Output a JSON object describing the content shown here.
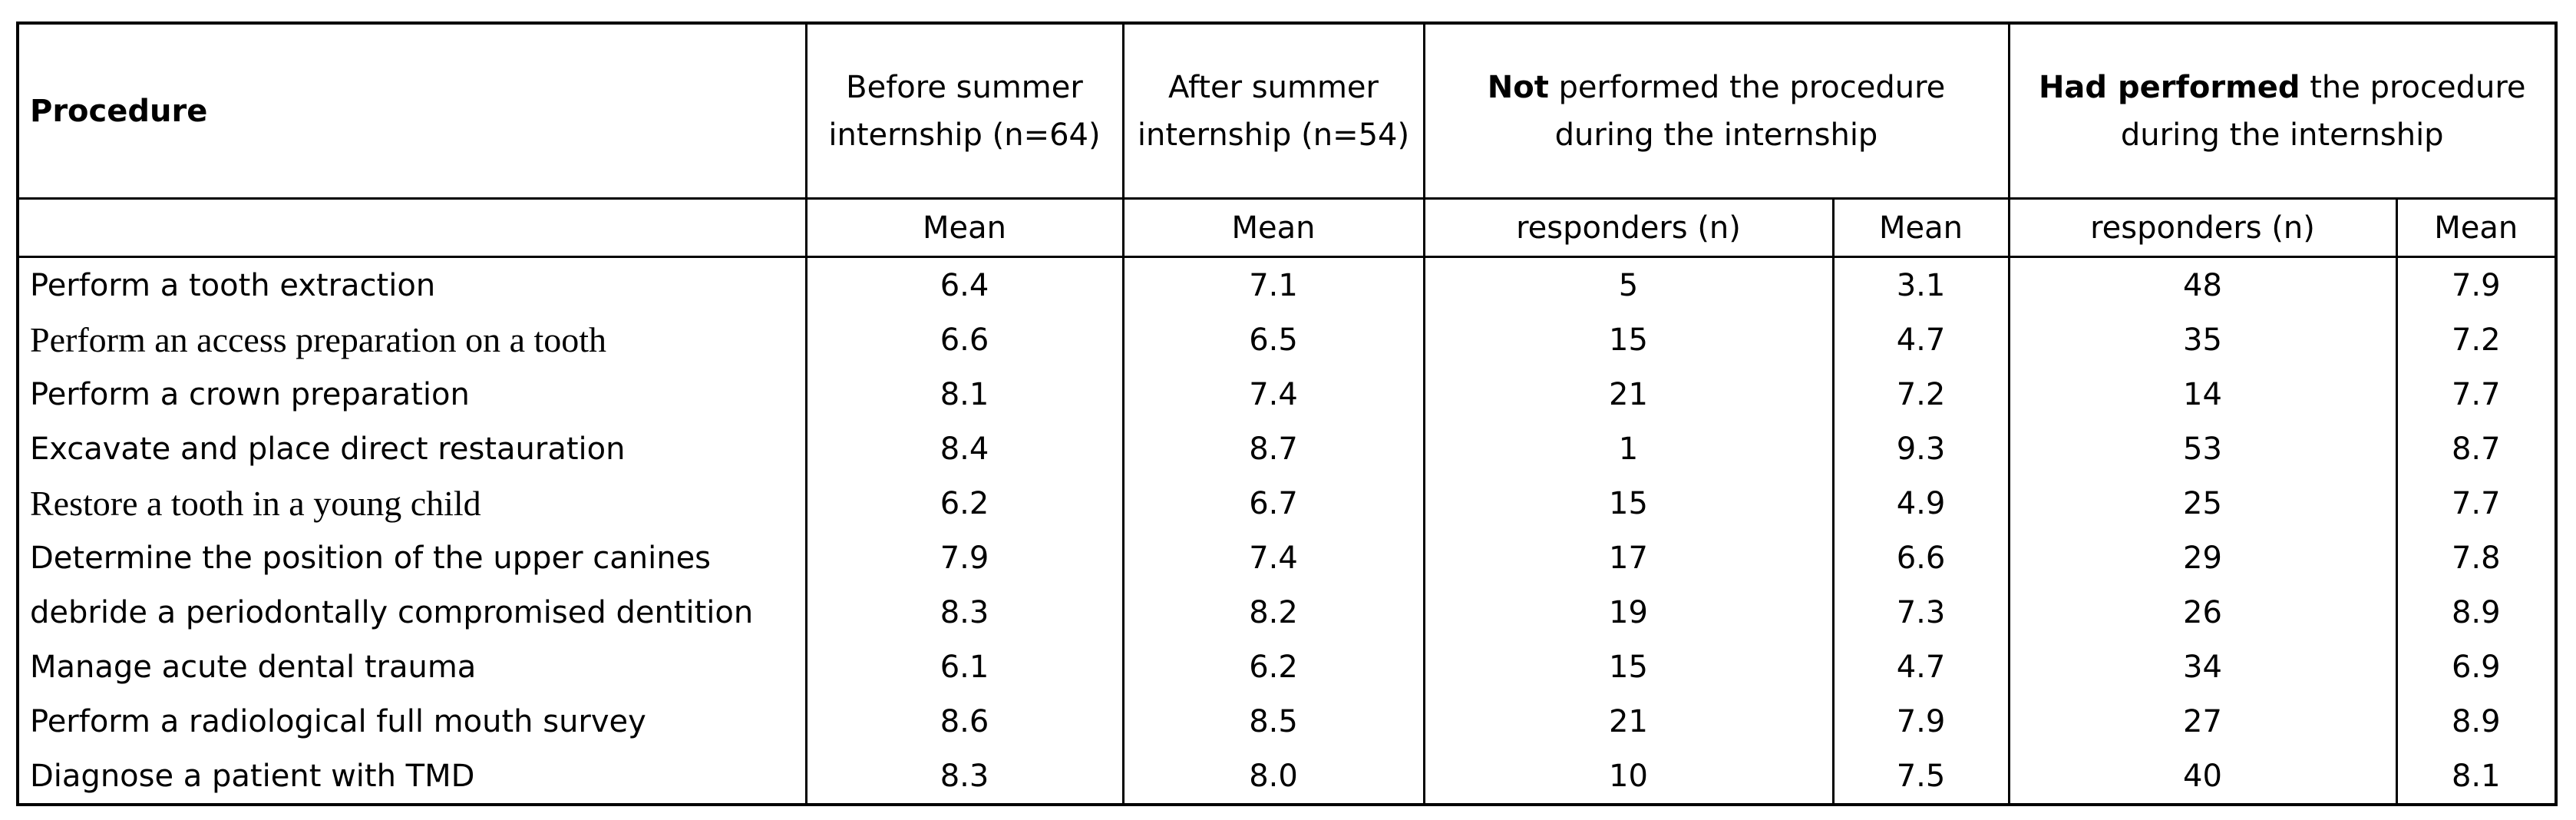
{
  "table": {
    "header": {
      "procedure": "Procedure",
      "before": "Before summer internship (n=64)",
      "after": "After summer internship (n=54)",
      "not_performed": {
        "bold": "Not",
        "rest": "performed the procedure during the internship"
      },
      "had_performed": {
        "bold": "Had performed",
        "rest": "the procedure during the internship"
      }
    },
    "subheader": [
      "Mean",
      "Mean",
      "responders (n)",
      "Mean",
      "responders (n)",
      "Mean"
    ],
    "rows": [
      [
        "Perform a tooth extraction",
        "6.4",
        "7.1",
        "5",
        "3.1",
        "48",
        "7.9"
      ],
      [
        "Perform an access preparation on a tooth",
        "6.6",
        "6.5",
        "15",
        "4.7",
        "35",
        "7.2"
      ],
      [
        "Perform a crown preparation",
        "8.1",
        "7.4",
        "21",
        "7.2",
        "14",
        "7.7"
      ],
      [
        "Excavate and place direct restauration",
        "8.4",
        "8.7",
        "1",
        "9.3",
        "53",
        "8.7"
      ],
      [
        "Restore a tooth in a young child",
        "6.2",
        "6.7",
        "15",
        "4.9",
        "25",
        "7.7"
      ],
      [
        "Determine the position of the upper canines",
        "7.9",
        "7.4",
        "17",
        "6.6",
        "29",
        "7.8"
      ],
      [
        "debride a periodontally compromised dentition",
        "8.3",
        "8.2",
        "19",
        "7.3",
        "26",
        "8.9"
      ],
      [
        "Manage acute dental trauma",
        "6.1",
        "6.2",
        "15",
        "4.7",
        "34",
        "6.9"
      ],
      [
        "Perform a radiological full mouth survey",
        "8.6",
        "8.5",
        "21",
        "7.9",
        "27",
        "8.9"
      ],
      [
        "Diagnose a patient with TMD",
        "8.3",
        "8.0",
        "10",
        "7.5",
        "40",
        "8.1"
      ]
    ]
  }
}
